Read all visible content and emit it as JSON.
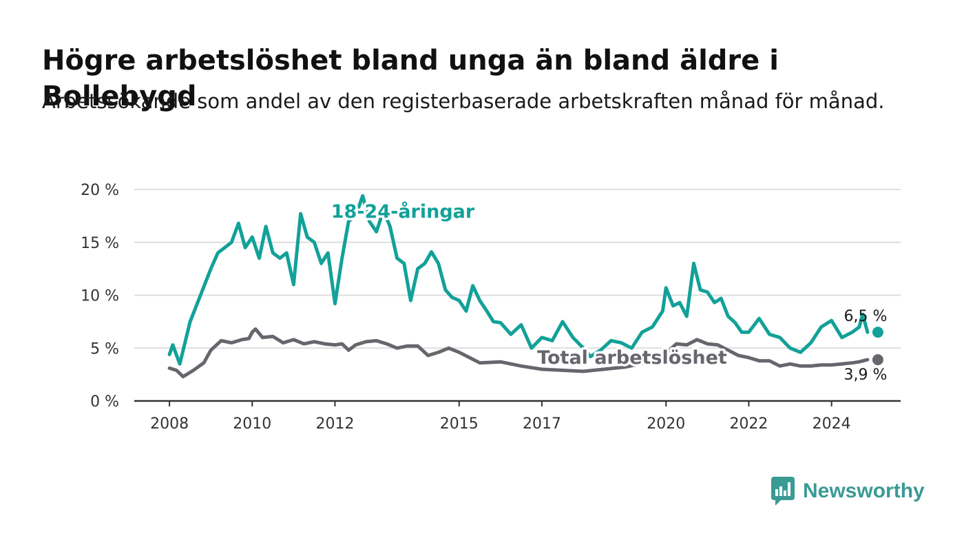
{
  "title": "Högre arbetslöshet bland unga än bland äldre i Bollebygd",
  "subtitle": "Arbetssökande som andel av den registerbaserade arbetskraften månad för månad.",
  "logo_text": "Newsworthy",
  "colors": {
    "youth": "#12a199",
    "total": "#68656d",
    "grid": "#dddddd",
    "axis": "#333333"
  },
  "chart_data": {
    "type": "line",
    "title": "Högre arbetslöshet bland unga än bland äldre i Bollebygd",
    "subtitle": "Arbetssökande som andel av den registerbaserade arbetskraften månad för månad.",
    "xlabel": "",
    "ylabel": "",
    "ylim": [
      0,
      20
    ],
    "yticks": [
      0,
      5,
      10,
      15,
      20
    ],
    "ytick_labels": [
      "0 %",
      "5 %",
      "10 %",
      "15 %",
      "20 %"
    ],
    "xticks": [
      2008,
      2010,
      2012,
      2015,
      2017,
      2020,
      2022,
      2024
    ],
    "xtick_labels": [
      "2008",
      "2010",
      "2012",
      "2015",
      "2017",
      "2020",
      "2022",
      "2024"
    ],
    "grid": true,
    "series": [
      {
        "name": "18-24-åringar",
        "end_label": "6,5 %",
        "x": [
          2008.0,
          2008.08,
          2008.25,
          2008.5,
          2008.75,
          2009.0,
          2009.17,
          2009.5,
          2009.67,
          2009.83,
          2010.0,
          2010.17,
          2010.33,
          2010.5,
          2010.67,
          2010.83,
          2011.0,
          2011.17,
          2011.33,
          2011.5,
          2011.67,
          2011.83,
          2012.0,
          2012.17,
          2012.33,
          2012.5,
          2012.67,
          2012.83,
          2013.0,
          2013.17,
          2013.33,
          2013.5,
          2013.67,
          2013.83,
          2014.0,
          2014.17,
          2014.33,
          2014.5,
          2014.67,
          2014.83,
          2015.0,
          2015.17,
          2015.33,
          2015.5,
          2015.67,
          2015.83,
          2016.0,
          2016.25,
          2016.5,
          2016.75,
          2017.0,
          2017.25,
          2017.5,
          2017.75,
          2018.0,
          2018.17,
          2018.42,
          2018.67,
          2018.92,
          2019.17,
          2019.42,
          2019.67,
          2019.92,
          2020.0,
          2020.17,
          2020.33,
          2020.5,
          2020.67,
          2020.83,
          2021.0,
          2021.17,
          2021.33,
          2021.5,
          2021.67,
          2021.83,
          2022.0,
          2022.25,
          2022.5,
          2022.75,
          2023.0,
          2023.25,
          2023.5,
          2023.75,
          2024.0,
          2024.25,
          2024.5,
          2024.67,
          2024.75,
          2024.87
        ],
        "y": [
          4.4,
          5.3,
          3.5,
          7.5,
          10.0,
          12.5,
          14.0,
          15.0,
          16.8,
          14.5,
          15.5,
          13.5,
          16.5,
          14.0,
          13.5,
          14.0,
          11.0,
          17.7,
          15.5,
          15.0,
          13.0,
          14.0,
          9.2,
          13.5,
          17.0,
          17.5,
          19.4,
          17.0,
          16.0,
          18.0,
          16.5,
          13.5,
          13.0,
          9.5,
          12.5,
          13.0,
          14.1,
          13.0,
          10.5,
          9.8,
          9.5,
          8.5,
          10.9,
          9.5,
          8.5,
          7.5,
          7.4,
          6.3,
          7.2,
          5.0,
          6.0,
          5.7,
          7.5,
          6.0,
          5.0,
          4.2,
          4.8,
          5.7,
          5.5,
          5.0,
          6.5,
          7.0,
          8.5,
          10.7,
          9.0,
          9.3,
          8.0,
          13.0,
          10.5,
          10.3,
          9.3,
          9.7,
          8.0,
          7.4,
          6.5,
          6.5,
          7.8,
          6.3,
          6.0,
          5.0,
          4.6,
          5.5,
          7.0,
          7.6,
          6.0,
          6.5,
          7.0,
          8.2,
          6.5
        ]
      },
      {
        "name": "Total arbetslöshet",
        "end_label": "3,9 %",
        "x": [
          2008.0,
          2008.17,
          2008.33,
          2008.58,
          2008.83,
          2009.0,
          2009.25,
          2009.5,
          2009.75,
          2009.92,
          2010.0,
          2010.08,
          2010.25,
          2010.5,
          2010.75,
          2011.0,
          2011.25,
          2011.5,
          2011.75,
          2012.0,
          2012.17,
          2012.33,
          2012.5,
          2012.75,
          2013.0,
          2013.25,
          2013.5,
          2013.75,
          2014.0,
          2014.25,
          2014.5,
          2014.75,
          2015.0,
          2015.5,
          2016.0,
          2016.5,
          2017.0,
          2017.5,
          2018.0,
          2018.5,
          2019.0,
          2019.5,
          2020.0,
          2020.25,
          2020.5,
          2020.75,
          2021.0,
          2021.25,
          2021.5,
          2021.75,
          2022.0,
          2022.25,
          2022.5,
          2022.75,
          2023.0,
          2023.25,
          2023.5,
          2023.75,
          2024.0,
          2024.25,
          2024.5,
          2024.67,
          2024.87
        ],
        "y": [
          3.1,
          2.9,
          2.3,
          2.9,
          3.6,
          4.8,
          5.7,
          5.5,
          5.8,
          5.9,
          6.5,
          6.8,
          6.0,
          6.1,
          5.5,
          5.8,
          5.4,
          5.6,
          5.4,
          5.3,
          5.4,
          4.8,
          5.3,
          5.6,
          5.7,
          5.4,
          5.0,
          5.2,
          5.2,
          4.3,
          4.6,
          5.0,
          4.6,
          3.6,
          3.7,
          3.3,
          3.0,
          2.9,
          2.8,
          3.0,
          3.2,
          3.6,
          4.5,
          5.4,
          5.3,
          5.8,
          5.4,
          5.3,
          4.8,
          4.3,
          4.1,
          3.8,
          3.8,
          3.3,
          3.5,
          3.3,
          3.3,
          3.4,
          3.4,
          3.5,
          3.6,
          3.7,
          3.9
        ]
      }
    ]
  }
}
